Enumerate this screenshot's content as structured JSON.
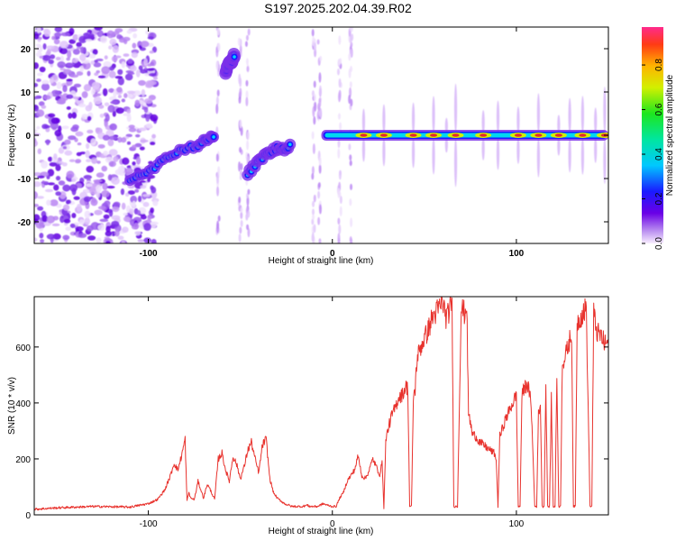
{
  "title": "S197.2025.202.04.39.R02",
  "colors": {
    "snr_line": "#e8322d",
    "frame": "#000000",
    "track_core": "#e62a2a"
  },
  "chart_data": [
    {
      "type": "heatmap",
      "xlabel": "Height of straight line (km)",
      "ylabel": "Frequency (Hz)",
      "xlim": [
        -162,
        150
      ],
      "ylim": [
        -25,
        25
      ],
      "x_ticks": [
        -100,
        0,
        100
      ],
      "y_ticks": [
        -20,
        -10,
        0,
        10,
        20
      ],
      "colorbar": {
        "label": "Normalized spectral amplitude",
        "range": [
          0,
          0.97
        ],
        "ticks": [
          0.0,
          0.2,
          0.4,
          0.6,
          0.8
        ],
        "tick_labels": [
          "0.0",
          "0.2",
          "0.4",
          "0.6",
          "0.8"
        ],
        "colormap": "rainbow (purple to magenta)"
      },
      "features": {
        "noise_region_km": [
          -162,
          -96
        ],
        "gap_km": [
          -96,
          -7
        ],
        "ascending_track": {
          "x": [
            -110,
            -104,
            -98,
            -92,
            -86,
            -80,
            -74,
            -70,
            -66,
            -64
          ],
          "y": [
            -10,
            -9,
            -7.5,
            -6,
            -4,
            -3,
            -2.5,
            -1.5,
            -0.5,
            0
          ]
        },
        "upper_blob": {
          "x": [
            -58,
            -57,
            -55,
            -54,
            -53
          ],
          "y": [
            14,
            16,
            17,
            18,
            18.5
          ]
        },
        "middle_blob": {
          "x": [
            -46,
            -42,
            -38,
            -34,
            -30,
            -26,
            -22
          ],
          "y": [
            -9,
            -7,
            -5,
            -4,
            -3,
            -3,
            -2
          ]
        },
        "main_track": {
          "x_range": [
            -6,
            150
          ],
          "y": 0,
          "peaks_km": [
            17,
            28,
            44,
            55,
            67,
            82,
            101,
            112,
            123,
            136,
            148
          ]
        }
      }
    },
    {
      "type": "line",
      "xlabel": "Height of straight line (km)",
      "ylabel": "SNR (10 * v/v)",
      "xlim": [
        -162,
        150
      ],
      "ylim": [
        0,
        780
      ],
      "x_ticks": [
        -100,
        0,
        100
      ],
      "y_ticks": [
        0,
        200,
        400,
        600
      ],
      "series": [
        {
          "x": [
            -162,
            -150,
            -130,
            -110,
            -100,
            -95,
            -91,
            -88,
            -86,
            -84,
            -82,
            -80,
            -79,
            -78,
            -77,
            -75,
            -73,
            -70,
            -68,
            -66,
            -64,
            -62,
            -60,
            -58,
            -56,
            -54,
            -52,
            -50,
            -48,
            -46,
            -44,
            -42,
            -40,
            -38,
            -36,
            -34,
            -32,
            -30,
            -28,
            -26,
            -24,
            -22,
            -20,
            -18,
            -16,
            -14,
            -12,
            -10,
            -8,
            -5,
            -3,
            0,
            2,
            4,
            6,
            8,
            10,
            12,
            14,
            16,
            18,
            20,
            22,
            24,
            26,
            27,
            28,
            29,
            30,
            32,
            34,
            36,
            38,
            40,
            41,
            42,
            43,
            44,
            45,
            46,
            48,
            50,
            52,
            54,
            56,
            58,
            60,
            62,
            64,
            65,
            66,
            67,
            68,
            70,
            72,
            73,
            74,
            75,
            76,
            78,
            80,
            82,
            84,
            86,
            88,
            89,
            90,
            91,
            92,
            94,
            96,
            98,
            100,
            101,
            102,
            103,
            104,
            106,
            108,
            110,
            111,
            112,
            113,
            114,
            115,
            116,
            117,
            118,
            119,
            120,
            121,
            122,
            123,
            124,
            125,
            126,
            128,
            130,
            131,
            132,
            133,
            134,
            136,
            138,
            140,
            141,
            142,
            143,
            144,
            146,
            148,
            150
          ],
          "y": [
            20,
            25,
            30,
            28,
            40,
            55,
            90,
            140,
            185,
            160,
            210,
            270,
            50,
            80,
            60,
            55,
            120,
            60,
            110,
            85,
            55,
            200,
            220,
            160,
            120,
            210,
            180,
            130,
            170,
            230,
            260,
            200,
            150,
            250,
            270,
            130,
            80,
            60,
            50,
            40,
            35,
            30,
            30,
            30,
            30,
            35,
            30,
            30,
            30,
            40,
            35,
            30,
            30,
            60,
            80,
            120,
            140,
            160,
            210,
            140,
            130,
            160,
            200,
            170,
            140,
            200,
            20,
            260,
            300,
            350,
            380,
            420,
            430,
            460,
            450,
            30,
            30,
            420,
            450,
            560,
            600,
            630,
            660,
            700,
            720,
            740,
            760,
            700,
            740,
            760,
            30,
            30,
            30,
            740,
            720,
            760,
            360,
            330,
            290,
            280,
            260,
            250,
            240,
            230,
            220,
            200,
            30,
            280,
            300,
            340,
            370,
            400,
            430,
            30,
            30,
            420,
            450,
            470,
            400,
            30,
            30,
            360,
            400,
            30,
            30,
            460,
            30,
            30,
            420,
            30,
            30,
            500,
            30,
            30,
            560,
            550,
            600,
            650,
            30,
            30,
            680,
            700,
            720,
            740,
            30,
            30,
            720,
            680,
            650,
            640,
            610,
            620
          ]
        }
      ]
    }
  ]
}
